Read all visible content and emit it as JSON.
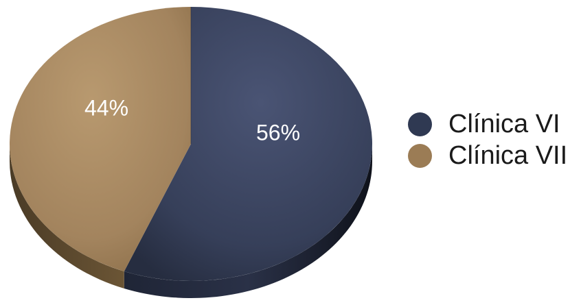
{
  "chart_data": {
    "type": "pie",
    "categories": [
      "Clínica VI",
      "Clínica VII"
    ],
    "values": [
      56,
      44
    ],
    "data_labels": [
      "56%",
      "44%"
    ],
    "colors": [
      "#3b4460",
      "#a3845e"
    ],
    "title": "",
    "legend_position": "right",
    "style": "3d"
  },
  "legend": {
    "items": [
      {
        "label": "Clínica VI",
        "color": "#2f3952"
      },
      {
        "label": "Clínica VII",
        "color": "#9b7c55"
      }
    ]
  }
}
